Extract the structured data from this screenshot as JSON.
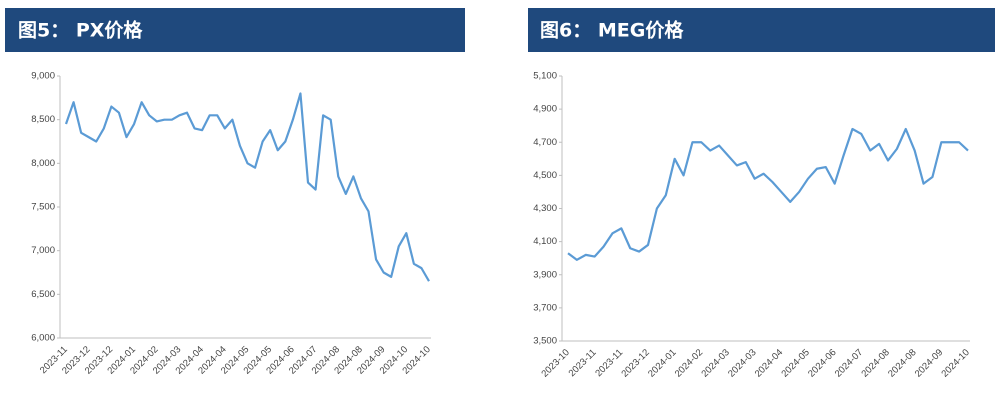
{
  "chart_data": [
    {
      "type": "line",
      "title": "图5：  PX价格",
      "color": "#5b9bd5",
      "categories": [
        "2023-11",
        null,
        null,
        "2023-12",
        null,
        null,
        "2023-12",
        null,
        null,
        "2024-01",
        null,
        null,
        "2024-02",
        null,
        null,
        "2024-03",
        null,
        null,
        "2024-04",
        null,
        null,
        "2024-04",
        null,
        null,
        "2024-05",
        null,
        null,
        "2024-05",
        null,
        null,
        "2024-06",
        null,
        null,
        "2024-07",
        null,
        null,
        "2024-08",
        null,
        null,
        "2024-08",
        null,
        null,
        "2024-09",
        null,
        null,
        "2024-10",
        null,
        null,
        "2024-10"
      ],
      "values": [
        8450,
        8700,
        8350,
        8300,
        8250,
        8400,
        8650,
        8580,
        8300,
        8450,
        8700,
        8550,
        8480,
        8500,
        8500,
        8550,
        8580,
        8400,
        8380,
        8550,
        8550,
        8400,
        8500,
        8200,
        8000,
        7950,
        8250,
        8380,
        8150,
        8250,
        8500,
        8800,
        7780,
        7700,
        8550,
        8500,
        7850,
        7650,
        7850,
        7600,
        7450,
        6900,
        6750,
        6700,
        7050,
        7200,
        6850,
        6800,
        6650
      ],
      "ylim": [
        6000,
        9000
      ],
      "yticks": [
        {
          "value": 6000,
          "label": "6,000"
        },
        {
          "value": 6500,
          "label": "6,500"
        },
        {
          "value": 7000,
          "label": "7,000"
        },
        {
          "value": 7500,
          "label": "7,500"
        },
        {
          "value": 8000,
          "label": "8,000"
        },
        {
          "value": 8500,
          "label": "8,500"
        },
        {
          "value": 9000,
          "label": "9,000"
        }
      ]
    },
    {
      "type": "line",
      "title": "图6：  MEG价格",
      "color": "#5b9bd5",
      "categories": [
        "2023-10",
        null,
        null,
        "2023-11",
        null,
        null,
        "2023-11",
        null,
        null,
        "2023-12",
        null,
        null,
        "2024-01",
        null,
        null,
        "2024-02",
        null,
        null,
        "2024-03",
        null,
        null,
        "2024-03",
        null,
        null,
        "2024-04",
        null,
        null,
        "2024-05",
        null,
        null,
        "2024-06",
        null,
        null,
        "2024-07",
        null,
        null,
        "2024-08",
        null,
        null,
        "2024-08",
        null,
        null,
        "2024-09",
        null,
        null,
        "2024-10"
      ],
      "values": [
        4030,
        3990,
        4020,
        4010,
        4070,
        4150,
        4180,
        4060,
        4040,
        4080,
        4300,
        4380,
        4600,
        4500,
        4700,
        4700,
        4650,
        4680,
        4620,
        4560,
        4580,
        4480,
        4510,
        4460,
        4400,
        4340,
        4400,
        4480,
        4540,
        4550,
        4450,
        4620,
        4780,
        4750,
        4650,
        4690,
        4590,
        4660,
        4780,
        4650,
        4450,
        4490,
        4700,
        4700,
        4700,
        4650
      ],
      "ylim": [
        3500,
        5100
      ],
      "yticks": [
        {
          "value": 3500,
          "label": "3,500"
        },
        {
          "value": 3700,
          "label": "3,700"
        },
        {
          "value": 3900,
          "label": "3,900"
        },
        {
          "value": 4100,
          "label": "4,100"
        },
        {
          "value": 4300,
          "label": "4,300"
        },
        {
          "value": 4500,
          "label": "4,500"
        },
        {
          "value": 4700,
          "label": "4,700"
        },
        {
          "value": 4900,
          "label": "4,900"
        },
        {
          "value": 5100,
          "label": "5,100"
        }
      ]
    }
  ]
}
